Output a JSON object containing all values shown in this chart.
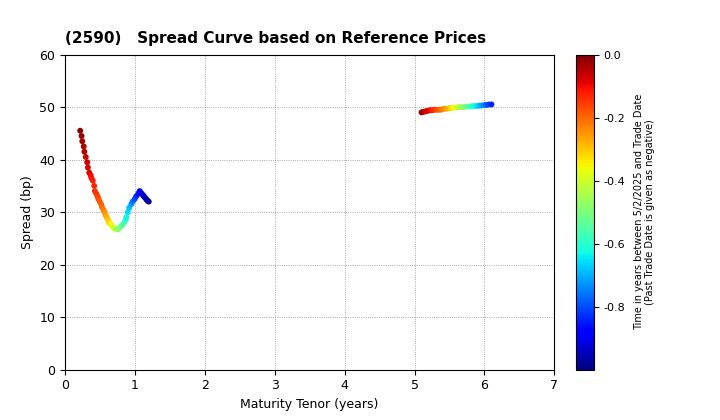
{
  "title": "(2590)   Spread Curve based on Reference Prices",
  "xlabel": "Maturity Tenor (years)",
  "ylabel": "Spread (bp)",
  "colorbar_label": "Time in years between 5/2/2025 and Trade Date\n(Past Trade Date is given as negative)",
  "xlim": [
    0,
    7
  ],
  "ylim": [
    0,
    60
  ],
  "xticks": [
    0,
    1,
    2,
    3,
    4,
    5,
    6,
    7
  ],
  "yticks": [
    0,
    10,
    20,
    30,
    40,
    50,
    60
  ],
  "cmap": "jet",
  "color_min": -1.0,
  "color_max": 0.0,
  "colorbar_ticks": [
    0.0,
    -0.2,
    -0.4,
    -0.6,
    -0.8
  ],
  "group1": {
    "tenor": [
      0.22,
      0.24,
      0.25,
      0.27,
      0.28,
      0.3,
      0.32,
      0.33,
      0.35,
      0.37,
      0.38,
      0.4,
      0.42,
      0.43,
      0.45,
      0.47,
      0.48,
      0.5,
      0.52,
      0.53,
      0.55,
      0.57,
      0.58,
      0.6,
      0.62,
      0.63,
      0.65,
      0.67,
      0.68,
      0.7,
      0.72,
      0.75,
      0.77,
      0.8,
      0.82,
      0.85,
      0.87,
      0.88,
      0.9,
      0.92,
      0.95,
      0.97,
      1.0,
      1.02,
      1.05,
      1.07,
      1.08,
      1.1,
      1.12,
      1.13,
      1.15,
      1.17,
      1.18,
      1.2
    ],
    "spread": [
      45.5,
      44.5,
      43.5,
      42.5,
      41.5,
      40.5,
      39.5,
      38.5,
      37.5,
      37.0,
      36.5,
      36.0,
      35.0,
      34.0,
      33.5,
      33.0,
      32.5,
      32.0,
      31.5,
      31.0,
      30.5,
      30.0,
      29.5,
      29.0,
      28.5,
      28.0,
      27.8,
      27.5,
      27.3,
      27.0,
      26.8,
      26.7,
      26.8,
      27.2,
      27.5,
      28.0,
      28.5,
      29.0,
      30.0,
      30.8,
      31.5,
      32.0,
      32.5,
      33.0,
      33.5,
      34.0,
      33.8,
      33.5,
      33.2,
      33.0,
      32.7,
      32.4,
      32.2,
      32.0
    ],
    "color_val": [
      -0.01,
      -0.02,
      -0.03,
      -0.04,
      -0.05,
      -0.06,
      -0.07,
      -0.08,
      -0.09,
      -0.1,
      -0.11,
      -0.12,
      -0.13,
      -0.14,
      -0.15,
      -0.16,
      -0.17,
      -0.18,
      -0.19,
      -0.2,
      -0.22,
      -0.24,
      -0.26,
      -0.28,
      -0.3,
      -0.32,
      -0.34,
      -0.36,
      -0.38,
      -0.4,
      -0.42,
      -0.45,
      -0.48,
      -0.51,
      -0.54,
      -0.57,
      -0.6,
      -0.63,
      -0.66,
      -0.69,
      -0.72,
      -0.76,
      -0.8,
      -0.83,
      -0.86,
      -0.89,
      -0.9,
      -0.91,
      -0.92,
      -0.93,
      -0.94,
      -0.95,
      -0.96,
      -0.97
    ]
  },
  "group2": {
    "tenor": [
      5.1,
      5.13,
      5.16,
      5.19,
      5.22,
      5.25,
      5.28,
      5.31,
      5.34,
      5.37,
      5.4,
      5.43,
      5.46,
      5.5,
      5.53,
      5.56,
      5.6,
      5.63,
      5.66,
      5.7,
      5.73,
      5.76,
      5.8,
      5.83,
      5.87,
      5.9,
      5.93,
      5.96,
      6.0,
      6.03,
      6.06,
      6.1
    ],
    "spread": [
      49.0,
      49.1,
      49.2,
      49.3,
      49.4,
      49.4,
      49.5,
      49.5,
      49.5,
      49.5,
      49.6,
      49.7,
      49.7,
      49.8,
      49.8,
      49.9,
      49.9,
      50.0,
      50.0,
      50.0,
      50.1,
      50.1,
      50.1,
      50.2,
      50.2,
      50.2,
      50.3,
      50.3,
      50.4,
      50.4,
      50.5,
      50.5
    ],
    "color_val": [
      -0.02,
      -0.04,
      -0.06,
      -0.08,
      -0.1,
      -0.12,
      -0.14,
      -0.16,
      -0.18,
      -0.2,
      -0.22,
      -0.24,
      -0.27,
      -0.3,
      -0.33,
      -0.36,
      -0.39,
      -0.42,
      -0.45,
      -0.48,
      -0.51,
      -0.54,
      -0.57,
      -0.6,
      -0.63,
      -0.66,
      -0.69,
      -0.72,
      -0.75,
      -0.78,
      -0.81,
      -0.84
    ]
  }
}
